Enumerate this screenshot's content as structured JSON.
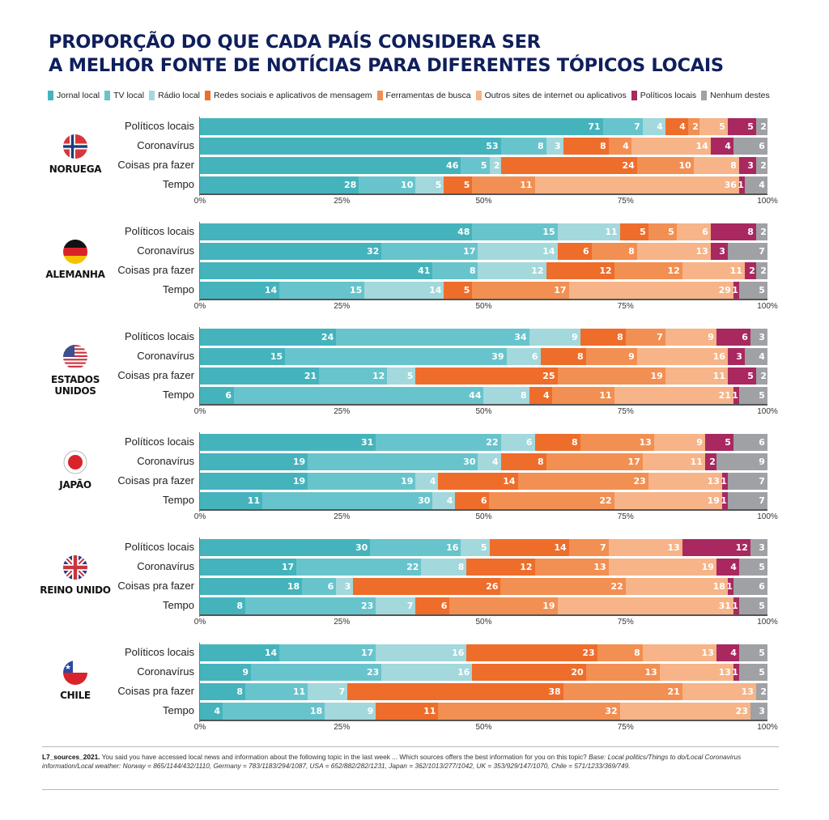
{
  "title_line1": "PROPORÇÃO DO QUE CADA PAÍS CONSIDERA SER",
  "title_line2": "A MELHOR FONTE DE NOTÍCIAS PARA DIFERENTES TÓPICOS LOCAIS",
  "footnote": {
    "code": "L7_sources_2021.",
    "text": " You said you have accessed local news and information about the following topic in the last week ... Which sources offers the best information for you on this topic? ",
    "base": "Base: Local politics/Things to do/Local Coronavirus information/Local weather: Norway = 865/1144/432/1110, Germany = 783/1183/294/1087, USA = 652/882/282/1231, Japan = 362/1013/277/1042, UK = 353/929/147/1070, Chile = 571/1233/369/749."
  },
  "chart_data": {
    "type": "bar",
    "orientation": "horizontal",
    "stacked": true,
    "title": "PROPORÇÃO DO QUE CADA PAÍS CONSIDERA SER A MELHOR FONTE DE NOTÍCIAS PARA DIFERENTES TÓPICOS LOCAIS",
    "xlabel": "",
    "ylabel": "",
    "xlim": [
      0,
      100
    ],
    "x_ticks": [
      "0%",
      "25%",
      "50%",
      "75%",
      "100%"
    ],
    "x_tick_values": [
      0,
      25,
      50,
      75,
      100
    ],
    "grid": false,
    "legend_position": "top",
    "legend": [
      {
        "name": "Jornal local",
        "color": "#45b3bc"
      },
      {
        "name": "TV local",
        "color": "#68c4cc"
      },
      {
        "name": "Rádio local",
        "color": "#a3d8dc"
      },
      {
        "name": "Redes sociais e aplicativos de mensagem",
        "color": "#ee6d2b"
      },
      {
        "name": "Ferramentas de busca",
        "color": "#f28f52"
      },
      {
        "name": "Outros sites de internet ou aplicativos",
        "color": "#f6b488"
      },
      {
        "name": "Políticos locais",
        "color": "#a8285f"
      },
      {
        "name": "Nenhum destes",
        "color": "#9fa1a5"
      }
    ],
    "categories": [
      "Políticos locais",
      "Coronavírus",
      "Coisas pra fazer",
      "Tempo"
    ],
    "groups": [
      {
        "country": "NORUEGA",
        "flag": "norway-flag",
        "rows": [
          [
            71,
            7,
            4,
            4,
            2,
            5,
            5,
            2
          ],
          [
            53,
            8,
            3,
            8,
            4,
            14,
            4,
            6
          ],
          [
            46,
            5,
            2,
            24,
            10,
            8,
            3,
            2
          ],
          [
            28,
            10,
            5,
            5,
            11,
            36,
            1,
            4
          ]
        ]
      },
      {
        "country": "ALEMANHA",
        "flag": "germany-flag",
        "rows": [
          [
            48,
            15,
            11,
            5,
            5,
            6,
            8,
            2
          ],
          [
            32,
            17,
            14,
            6,
            8,
            13,
            3,
            7
          ],
          [
            41,
            8,
            12,
            12,
            12,
            11,
            2,
            2
          ],
          [
            14,
            15,
            14,
            5,
            17,
            29,
            1,
            5
          ]
        ]
      },
      {
        "country": "ESTADOS UNIDOS",
        "flag": "usa-flag",
        "rows": [
          [
            24,
            34,
            9,
            8,
            7,
            9,
            6,
            3
          ],
          [
            15,
            39,
            6,
            8,
            9,
            16,
            3,
            4
          ],
          [
            21,
            12,
            5,
            25,
            19,
            11,
            5,
            2
          ],
          [
            6,
            44,
            8,
            4,
            11,
            21,
            1,
            5
          ]
        ]
      },
      {
        "country": "JAPÃO",
        "flag": "japan-flag",
        "rows": [
          [
            31,
            22,
            6,
            8,
            13,
            9,
            5,
            6
          ],
          [
            19,
            30,
            4,
            8,
            17,
            11,
            2,
            9
          ],
          [
            19,
            19,
            4,
            14,
            23,
            13,
            1,
            7
          ],
          [
            11,
            30,
            4,
            6,
            22,
            19,
            1,
            7
          ]
        ]
      },
      {
        "country": "REINO UNIDO",
        "flag": "uk-flag",
        "rows": [
          [
            30,
            16,
            5,
            14,
            7,
            13,
            12,
            3
          ],
          [
            17,
            22,
            8,
            12,
            13,
            19,
            4,
            5
          ],
          [
            18,
            6,
            3,
            26,
            22,
            18,
            1,
            6
          ],
          [
            8,
            23,
            7,
            6,
            19,
            31,
            1,
            5
          ]
        ]
      },
      {
        "country": "CHILE",
        "flag": "chile-flag",
        "rows": [
          [
            14,
            17,
            16,
            23,
            8,
            13,
            4,
            5
          ],
          [
            9,
            23,
            16,
            20,
            13,
            13,
            1,
            5
          ],
          [
            8,
            11,
            7,
            38,
            21,
            13,
            0,
            2
          ],
          [
            4,
            18,
            9,
            11,
            32,
            23,
            0,
            3
          ]
        ]
      }
    ]
  }
}
